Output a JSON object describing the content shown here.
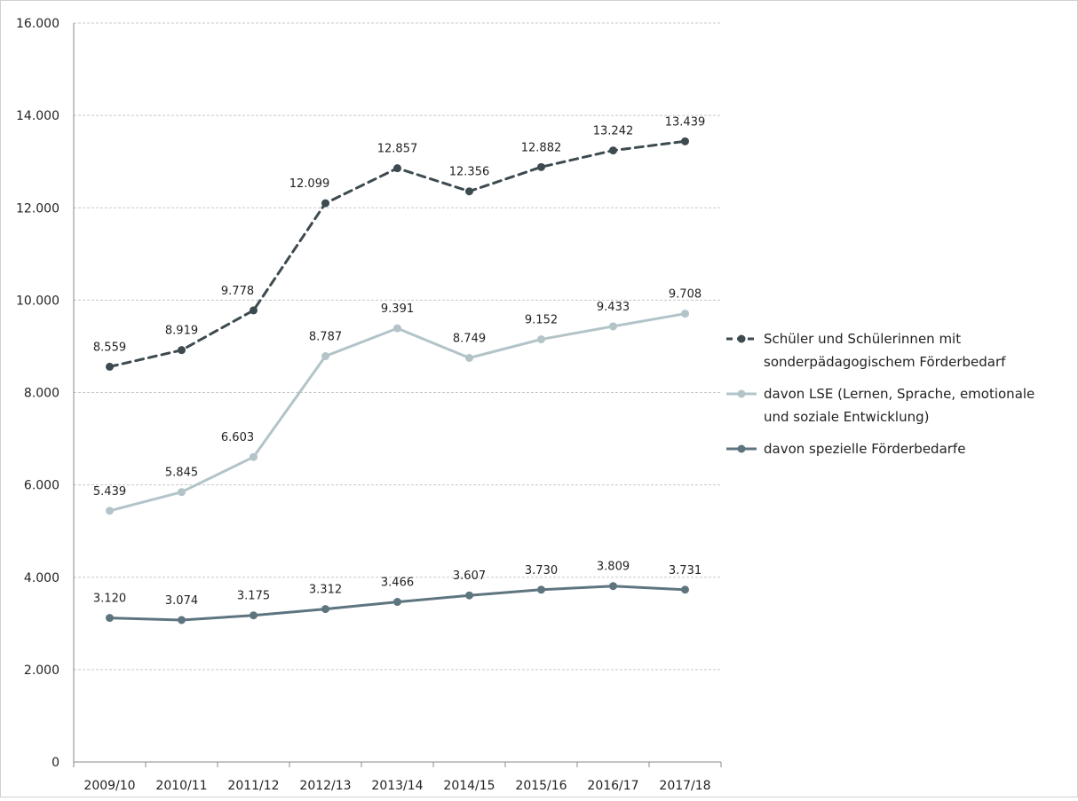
{
  "chart_data": {
    "type": "line",
    "categories": [
      "2009/10",
      "2010/11",
      "2011/12",
      "2012/13",
      "2013/14",
      "2014/15",
      "2015/16",
      "2016/17",
      "2017/18"
    ],
    "ylim": [
      0,
      16000
    ],
    "yticks": [
      0,
      2000,
      4000,
      6000,
      8000,
      10000,
      12000,
      14000,
      16000
    ],
    "ytick_labels": [
      "0",
      "2.000",
      "4.000",
      "6.000",
      "8.000",
      "10.000",
      "12.000",
      "14.000",
      "16.000"
    ],
    "grid": true,
    "legend_position": "right",
    "series": [
      {
        "name": "Schüler und Schülerinnen mit sonderpädagogischem Förderbedarf",
        "name_lines": [
          "Schüler und Schülerinnen mit",
          "sonderpädagogischem Förderbedarf"
        ],
        "values": [
          8559,
          8919,
          9778,
          12099,
          12857,
          12356,
          12882,
          13242,
          13439
        ],
        "labels": [
          "8.559",
          "8.919",
          "9.778",
          "12.099",
          "12.857",
          "12.356",
          "12.882",
          "13.242",
          "13.439"
        ],
        "color": "#3d4a50",
        "dashed": true
      },
      {
        "name": "davon LSE (Lernen, Sprache, emotionale und soziale Entwicklung)",
        "name_lines": [
          "davon LSE (Lernen, Sprache, emotionale",
          "und soziale Entwicklung)"
        ],
        "values": [
          5439,
          5845,
          6603,
          8787,
          9391,
          8749,
          9152,
          9433,
          9708
        ],
        "labels": [
          "5.439",
          "5.845",
          "6.603",
          "8.787",
          "9.391",
          "8.749",
          "9.152",
          "9.433",
          "9.708"
        ],
        "color": "#b3c4c9",
        "dashed": false
      },
      {
        "name": "davon spezielle Förderbedarfe",
        "name_lines": [
          "davon spezielle Förderbedarfe"
        ],
        "values": [
          3120,
          3074,
          3175,
          3312,
          3466,
          3607,
          3730,
          3809,
          3731
        ],
        "labels": [
          "3.120",
          "3.074",
          "3.175",
          "3.312",
          "3.466",
          "3.607",
          "3.730",
          "3.809",
          "3.731"
        ],
        "color": "#5e7580",
        "dashed": false
      }
    ]
  }
}
